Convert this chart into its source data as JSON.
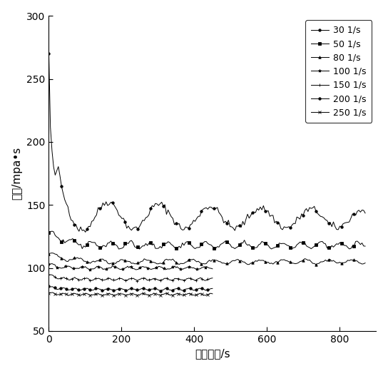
{
  "xlabel": "剪切时间/s",
  "ylabel": "粘度/mpa•s",
  "xlim": [
    0,
    900
  ],
  "ylim": [
    50,
    300
  ],
  "xticks": [
    0,
    200,
    400,
    600,
    800
  ],
  "yticks": [
    50,
    100,
    150,
    200,
    250,
    300
  ],
  "legend_labels": [
    "30 1/s",
    "50 1/s",
    "80 1/s",
    "100 1/s",
    "150 1/s",
    "200 1/s",
    "250 1/s"
  ],
  "line_color": "#000000",
  "background_color": "#ffffff",
  "series": {
    "30": {
      "start": 263,
      "peak2": 167,
      "steady": 140,
      "amp": 8,
      "freq": 0.055,
      "n": 200,
      "tmax": 870,
      "marker": "o",
      "ms": 2.5,
      "mevery": 8
    },
    "50": {
      "start": 128,
      "steady": 118,
      "amp": 2.5,
      "freq": 0.12,
      "n": 200,
      "tmax": 870,
      "marker": "s",
      "ms": 2.5,
      "mevery": 8
    },
    "80": {
      "start": 112,
      "steady": 105,
      "amp": 1.5,
      "freq": 0.1,
      "n": 200,
      "tmax": 870,
      "marker": "^",
      "ms": 2.5,
      "mevery": 8
    },
    "100": {
      "start": 103,
      "steady": 100,
      "amp": 1.0,
      "freq": 0.15,
      "n": 140,
      "tmax": 450,
      "marker": "*",
      "ms": 3,
      "mevery": 7
    },
    "150": {
      "start": 95,
      "steady": 91,
      "amp": 0.8,
      "freq": 0.2,
      "n": 140,
      "tmax": 450,
      "marker": "+",
      "ms": 3,
      "mevery": 5
    },
    "200": {
      "start": 85,
      "steady": 83,
      "amp": 0.7,
      "freq": 0.2,
      "n": 140,
      "tmax": 450,
      "marker": "o",
      "ms": 2.5,
      "mevery": 5
    },
    "250": {
      "start": 80,
      "steady": 79,
      "amp": 0.6,
      "freq": 0.2,
      "n": 140,
      "tmax": 450,
      "marker": "x",
      "ms": 2.5,
      "mevery": 5
    }
  }
}
